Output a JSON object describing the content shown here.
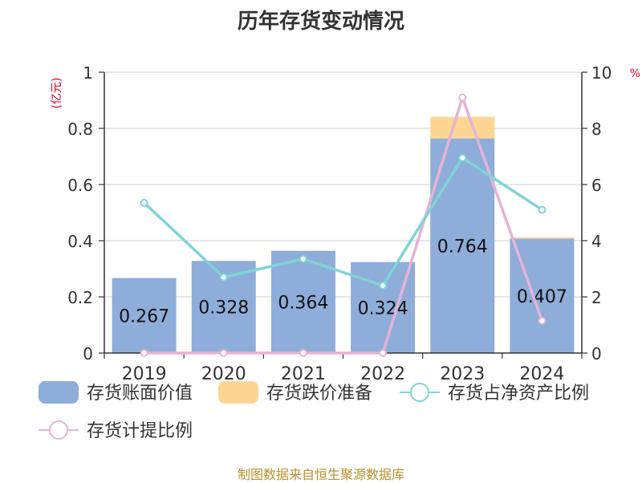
{
  "title": "历年存货变动情况",
  "source": "制图数据来自恒生聚源数据库",
  "colors": {
    "book_value": "#8eadd9",
    "impairment": "#fdd594",
    "net_asset_ratio": "#7fd4d6",
    "provision_ratio": "#e5b3d6",
    "unit_text": "#e0001b",
    "axis": "#333333",
    "grid": "#cccccc"
  },
  "chart_data": {
    "type": "bar",
    "categories": [
      "2019",
      "2020",
      "2021",
      "2022",
      "2023",
      "2024"
    ],
    "left_axis": {
      "unit": "(亿元)",
      "ylim": [
        0,
        1
      ],
      "ticks": [
        "0",
        "0.2",
        "0.4",
        "0.6",
        "0.8",
        "1"
      ]
    },
    "right_axis": {
      "unit": "%",
      "ylim": [
        0,
        10
      ],
      "ticks": [
        "0",
        "2",
        "4",
        "6",
        "8",
        "10"
      ]
    },
    "series": [
      {
        "name": "存货账面价值",
        "kind": "bar",
        "stack": "inventory",
        "axis": "left",
        "values": [
          0.267,
          0.328,
          0.364,
          0.324,
          0.764,
          0.407
        ],
        "labels": [
          "0.267",
          "0.328",
          "0.364",
          "0.324",
          "0.764",
          "0.407"
        ]
      },
      {
        "name": "存货跌价准备",
        "kind": "bar",
        "stack": "inventory",
        "axis": "left",
        "values": [
          0,
          0,
          0,
          0,
          0.077,
          0.005
        ]
      },
      {
        "name": "存货占净资产比例",
        "kind": "line",
        "axis": "right",
        "values": [
          5.35,
          2.7,
          3.35,
          2.4,
          6.95,
          5.1
        ]
      },
      {
        "name": "存货计提比例",
        "kind": "line",
        "axis": "right",
        "values": [
          0,
          0,
          0,
          0,
          9.1,
          1.15
        ]
      }
    ],
    "legend_position": "bottom",
    "grid": true
  }
}
